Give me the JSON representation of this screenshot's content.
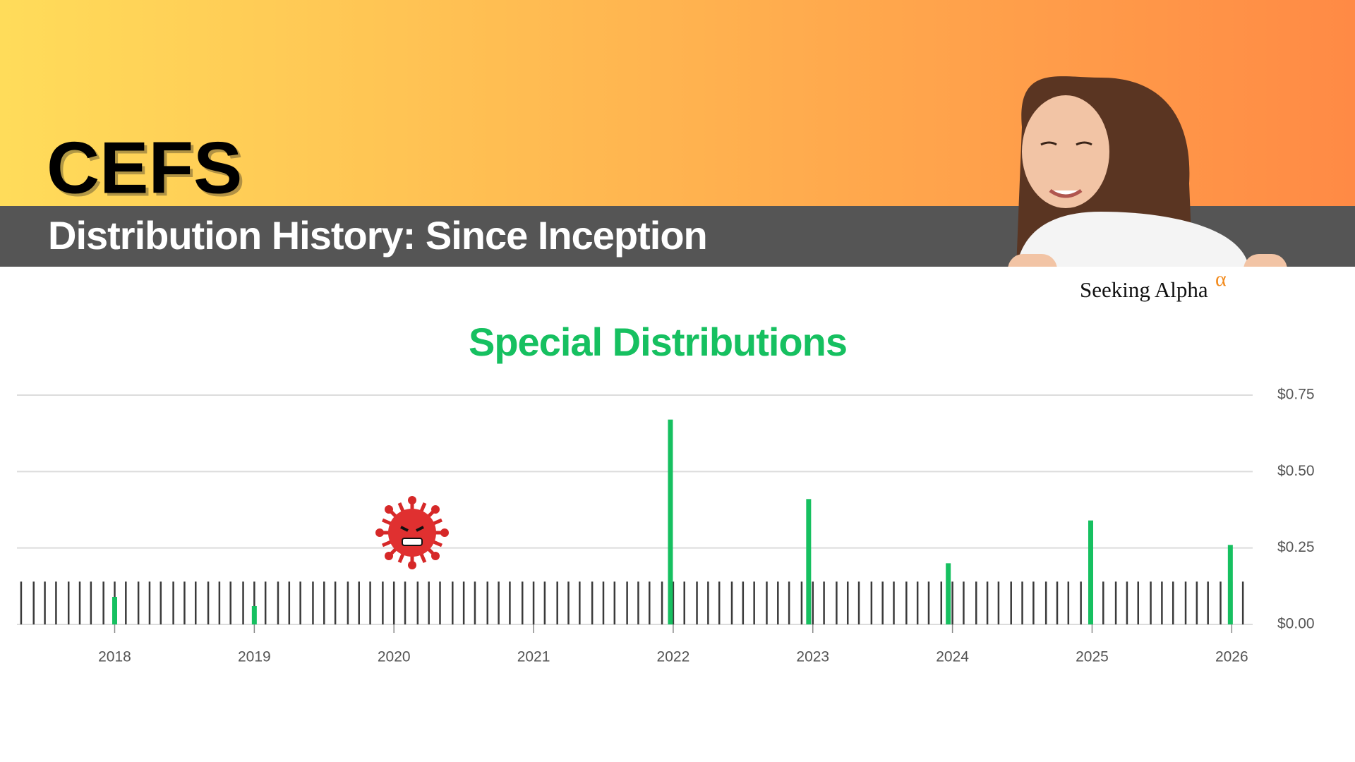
{
  "header": {
    "ticker": "CEFS",
    "subtitle": "Distribution History: Since Inception",
    "brand": "Seeking Alpha",
    "brand_mark": "α"
  },
  "chart_data": {
    "type": "bar",
    "title": "Special Distributions",
    "xlim": [
      2017.3,
      2026.15
    ],
    "xticks": [
      2018,
      2019,
      2020,
      2021,
      2022,
      2023,
      2024,
      2025,
      2026
    ],
    "ylim": [
      0,
      0.75
    ],
    "yticks": [
      {
        "value": 0,
        "label": "$0.00"
      },
      {
        "value": 0.25,
        "label": "$0.25"
      },
      {
        "value": 0.5,
        "label": "$0.50"
      },
      {
        "value": 0.75,
        "label": "$0.75"
      }
    ],
    "grid": true,
    "y_axis_side": "right",
    "series": [
      {
        "color": "#3a3a3a",
        "x": [
          2017.33,
          2017.42,
          2017.5,
          2017.58,
          2017.67,
          2017.75,
          2017.83,
          2017.92,
          2018,
          2018.08,
          2018.17,
          2018.25,
          2018.33,
          2018.42,
          2018.5,
          2018.58,
          2018.67,
          2018.75,
          2018.83,
          2018.92,
          2019,
          2019.08,
          2019.17,
          2019.25,
          2019.33,
          2019.42,
          2019.5,
          2019.58,
          2019.67,
          2019.75,
          2019.83,
          2019.92,
          2020,
          2020.08,
          2020.17,
          2020.25,
          2020.33,
          2020.42,
          2020.5,
          2020.58,
          2020.67,
          2020.75,
          2020.83,
          2020.92,
          2021,
          2021.08,
          2021.17,
          2021.25,
          2021.33,
          2021.42,
          2021.5,
          2021.58,
          2021.67,
          2021.75,
          2021.83,
          2021.92,
          2022,
          2022.08,
          2022.17,
          2022.25,
          2022.33,
          2022.42,
          2022.5,
          2022.58,
          2022.67,
          2022.75,
          2022.83,
          2022.92,
          2023,
          2023.08,
          2023.17,
          2023.25,
          2023.33,
          2023.42,
          2023.5,
          2023.58,
          2023.67,
          2023.75,
          2023.83,
          2023.92,
          2024,
          2024.08,
          2024.17,
          2024.25,
          2024.33,
          2024.42,
          2024.5,
          2024.58,
          2024.67,
          2024.75,
          2024.83,
          2024.92,
          2025,
          2025.08,
          2025.17,
          2025.25,
          2025.33,
          2025.42,
          2025.5,
          2025.58,
          2025.67,
          2025.75,
          2025.83,
          2025.92,
          2026,
          2026.08
        ],
        "values": [
          0.14,
          0.14,
          0.14,
          0.14,
          0.14,
          0.14,
          0.14,
          0.14,
          0.14,
          0.14,
          0.14,
          0.14,
          0.14,
          0.14,
          0.14,
          0.14,
          0.14,
          0.14,
          0.14,
          0.14,
          0.14,
          0.14,
          0.14,
          0.14,
          0.14,
          0.14,
          0.14,
          0.14,
          0.14,
          0.14,
          0.14,
          0.14,
          0.14,
          0.14,
          0.14,
          0.14,
          0.14,
          0.14,
          0.14,
          0.14,
          0.14,
          0.14,
          0.14,
          0.14,
          0.14,
          0.14,
          0.14,
          0.14,
          0.14,
          0.14,
          0.14,
          0.14,
          0.14,
          0.14,
          0.14,
          0.14,
          0.14,
          0.14,
          0.14,
          0.14,
          0.14,
          0.14,
          0.14,
          0.14,
          0.14,
          0.14,
          0.14,
          0.14,
          0.14,
          0.14,
          0.14,
          0.14,
          0.14,
          0.14,
          0.14,
          0.14,
          0.14,
          0.14,
          0.14,
          0.14,
          0.14,
          0.14,
          0.14,
          0.14,
          0.14,
          0.14,
          0.14,
          0.14,
          0.14,
          0.14,
          0.14,
          0.14,
          0.14,
          0.14,
          0.14,
          0.14,
          0.14,
          0.14,
          0.14,
          0.14,
          0.14,
          0.14,
          0.14,
          0.14,
          0.14,
          0.14
        ]
      },
      {
        "color": "#16c060",
        "x": [
          2018,
          2019,
          2021.98,
          2022.97,
          2023.97,
          2024.99,
          2025.99
        ],
        "values": [
          0.09,
          0.06,
          0.67,
          0.41,
          0.2,
          0.34,
          0.26
        ]
      }
    ]
  }
}
